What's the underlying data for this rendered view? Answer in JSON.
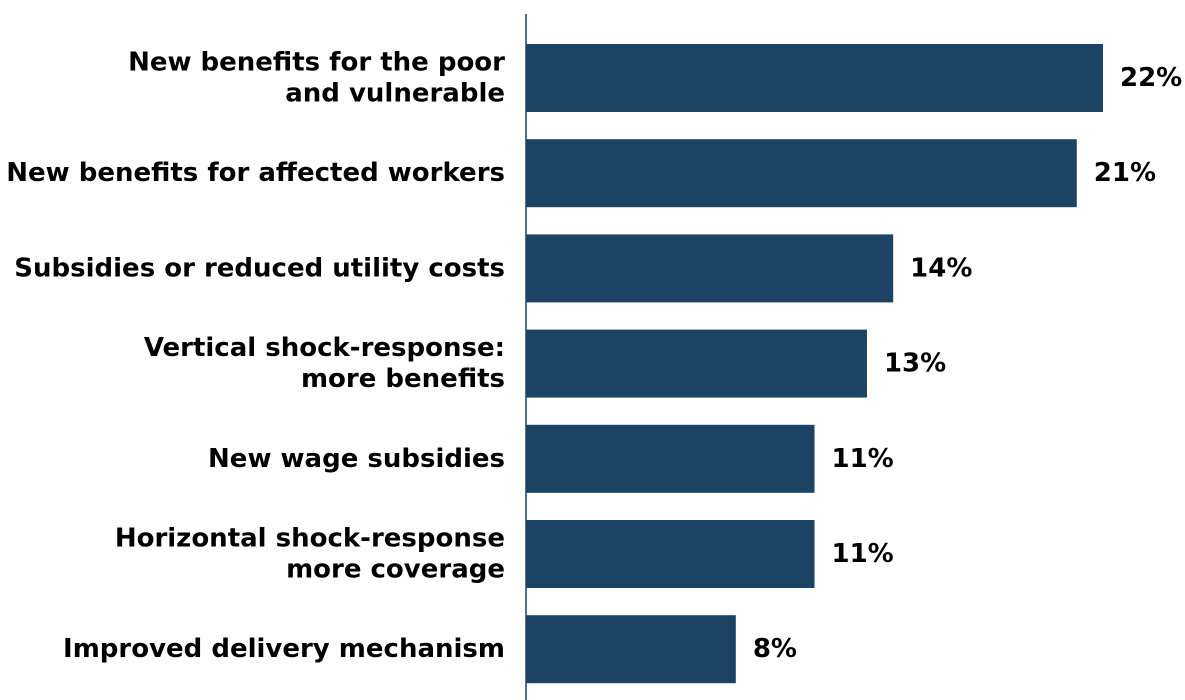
{
  "colors": {
    "bar": "#1c4264",
    "axis": "#1c4264",
    "text": "#000000",
    "background": "#ffffff"
  },
  "chart_data": {
    "type": "bar",
    "orientation": "horizontal",
    "categories": [
      [
        "New benefits for the poor",
        "and vulnerable"
      ],
      [
        "New benefits for affected workers"
      ],
      [
        "Subsidies or reduced utility costs"
      ],
      [
        "Vertical shock-response:",
        "more benefits"
      ],
      [
        "New wage subsidies"
      ],
      [
        "Horizontal shock-response",
        "more coverage"
      ],
      [
        "Improved delivery mechanism"
      ]
    ],
    "values": [
      22,
      21,
      14,
      13,
      11,
      11,
      8
    ],
    "value_labels": [
      "22%",
      "21%",
      "14%",
      "13%",
      "11%",
      "11%",
      "8%"
    ],
    "unit": "%",
    "xlim": [
      0,
      22
    ],
    "grid": false,
    "legend": "none"
  }
}
